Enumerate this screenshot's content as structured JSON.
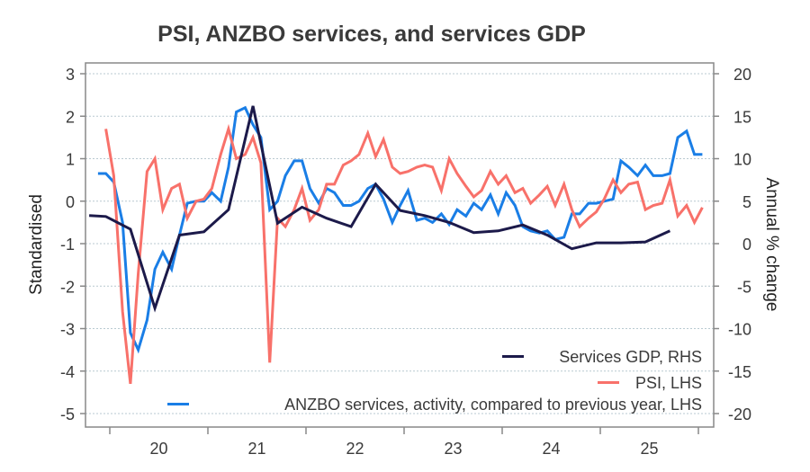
{
  "chart_data": {
    "type": "line",
    "title": "PSI, ANZBO services, and services GDP",
    "ylabel_left": "Standardised",
    "ylabel_right": "Annual % change",
    "xlabel": "",
    "ylim_left": [
      -5,
      3
    ],
    "ylim_right": [
      -20,
      20
    ],
    "yticks_left": [
      3,
      2,
      1,
      0,
      -1,
      -2,
      -3,
      -4,
      -5
    ],
    "yticks_right": [
      20,
      15,
      10,
      5,
      0,
      -5,
      -10,
      -15,
      -20
    ],
    "xlim": [
      2019.75,
      2026.15
    ],
    "xticks": [
      2020,
      2021,
      2022,
      2023,
      2024,
      2025,
      2026
    ],
    "xtick_labels": [
      "20",
      "21",
      "22",
      "23",
      "24",
      "25"
    ],
    "grid": true,
    "legend_position": "bottom-right",
    "colors": {
      "gdp": "#1c1a4a",
      "psi": "#f8716a",
      "anzbo": "#1a7ee6",
      "axis": "#888888",
      "grid": "#b9c9d0",
      "text": "#3a3a3a"
    },
    "series": [
      {
        "name": "Services GDP, RHS",
        "key": "gdp",
        "axis": "right",
        "x": [
          2019.79,
          2019.96,
          2020.21,
          2020.46,
          2020.71,
          2020.96,
          2021.21,
          2021.46,
          2021.71,
          2021.96,
          2022.21,
          2022.46,
          2022.71,
          2022.96,
          2023.21,
          2023.46,
          2023.71,
          2023.96,
          2024.21,
          2024.46,
          2024.71,
          2024.96,
          2025.21,
          2025.46,
          2025.71
        ],
        "values": [
          3.3,
          3.2,
          1.7,
          -7.6,
          1.0,
          1.4,
          4.0,
          16.2,
          2.4,
          4.3,
          3.0,
          2.0,
          7.0,
          3.9,
          3.3,
          2.5,
          1.3,
          1.5,
          2.2,
          1.0,
          -0.6,
          0.1,
          0.1,
          0.2,
          1.5
        ]
      },
      {
        "name": "PSI, LHS",
        "key": "psi",
        "axis": "left",
        "x": [
          2019.96,
          2020.04,
          2020.13,
          2020.21,
          2020.29,
          2020.38,
          2020.46,
          2020.54,
          2020.63,
          2020.71,
          2020.79,
          2020.88,
          2020.96,
          2021.04,
          2021.13,
          2021.21,
          2021.29,
          2021.38,
          2021.46,
          2021.54,
          2021.63,
          2021.71,
          2021.79,
          2021.88,
          2021.96,
          2022.04,
          2022.13,
          2022.21,
          2022.29,
          2022.38,
          2022.46,
          2022.54,
          2022.63,
          2022.71,
          2022.79,
          2022.88,
          2022.96,
          2023.04,
          2023.13,
          2023.21,
          2023.29,
          2023.38,
          2023.46,
          2023.54,
          2023.63,
          2023.71,
          2023.79,
          2023.88,
          2023.96,
          2024.04,
          2024.13,
          2024.21,
          2024.29,
          2024.38,
          2024.46,
          2024.54,
          2024.63,
          2024.71,
          2024.79,
          2024.88,
          2024.96,
          2025.04,
          2025.13,
          2025.21,
          2025.29,
          2025.38,
          2025.46,
          2025.54,
          2025.63,
          2025.71,
          2025.79,
          2025.88,
          2025.96,
          2026.04
        ],
        "values": [
          1.7,
          0.6,
          -2.6,
          -4.3,
          -1.7,
          0.7,
          1.0,
          -0.2,
          0.3,
          0.4,
          -0.4,
          0.0,
          0.05,
          0.3,
          1.1,
          1.7,
          1.0,
          1.1,
          1.5,
          0.9,
          -3.8,
          -0.4,
          -0.6,
          -0.2,
          0.3,
          -0.45,
          -0.2,
          0.4,
          0.4,
          0.85,
          0.95,
          1.1,
          1.6,
          1.05,
          1.45,
          0.8,
          0.65,
          0.7,
          0.8,
          0.85,
          0.8,
          0.25,
          1.0,
          0.65,
          0.35,
          0.1,
          0.25,
          0.7,
          0.4,
          0.6,
          0.2,
          0.3,
          -0.05,
          0.15,
          0.35,
          -0.1,
          0.4,
          -0.2,
          -0.6,
          -0.4,
          -0.25,
          0.05,
          0.5,
          0.2,
          0.4,
          0.45,
          -0.2,
          -0.1,
          -0.05,
          0.5,
          -0.35,
          -0.1,
          -0.5,
          -0.15
        ]
      },
      {
        "name": "ANZBO services, activity, compared to previous year, LHS",
        "key": "anzbo",
        "axis": "left",
        "x": [
          2019.88,
          2019.96,
          2020.04,
          2020.13,
          2020.21,
          2020.29,
          2020.38,
          2020.46,
          2020.54,
          2020.63,
          2020.71,
          2020.79,
          2020.88,
          2020.96,
          2021.04,
          2021.13,
          2021.21,
          2021.29,
          2021.38,
          2021.46,
          2021.54,
          2021.63,
          2021.71,
          2021.79,
          2021.88,
          2021.96,
          2022.04,
          2022.13,
          2022.21,
          2022.29,
          2022.38,
          2022.46,
          2022.54,
          2022.63,
          2022.71,
          2022.79,
          2022.88,
          2022.96,
          2023.04,
          2023.13,
          2023.21,
          2023.29,
          2023.38,
          2023.46,
          2023.54,
          2023.63,
          2023.71,
          2023.79,
          2023.88,
          2023.96,
          2024.04,
          2024.13,
          2024.21,
          2024.29,
          2024.38,
          2024.46,
          2024.54,
          2024.63,
          2024.71,
          2024.79,
          2024.88,
          2024.96,
          2025.04,
          2025.13,
          2025.21,
          2025.29,
          2025.38,
          2025.46,
          2025.54,
          2025.63,
          2025.71,
          2025.79,
          2025.88,
          2025.96,
          2026.04
        ],
        "values": [
          0.65,
          0.65,
          0.45,
          -0.5,
          -3.1,
          -3.5,
          -2.8,
          -1.6,
          -1.2,
          -1.6,
          -0.8,
          -0.05,
          0.0,
          0.0,
          0.2,
          0.0,
          0.8,
          2.1,
          2.2,
          1.8,
          1.5,
          -0.2,
          0.0,
          0.6,
          0.95,
          0.95,
          0.3,
          -0.05,
          0.3,
          0.2,
          -0.1,
          -0.1,
          0.0,
          0.3,
          0.4,
          0.05,
          -0.5,
          -0.1,
          0.25,
          -0.45,
          -0.4,
          -0.5,
          -0.3,
          -0.55,
          -0.2,
          -0.35,
          -0.05,
          -0.2,
          0.15,
          -0.3,
          0.2,
          -0.1,
          -0.6,
          -0.7,
          -0.75,
          -0.7,
          -0.9,
          -0.85,
          -0.3,
          -0.3,
          -0.05,
          -0.05,
          0.0,
          0.05,
          0.95,
          0.8,
          0.6,
          0.85,
          0.6,
          0.6,
          0.65,
          1.5,
          1.65,
          1.1,
          1.1
        ]
      }
    ]
  }
}
